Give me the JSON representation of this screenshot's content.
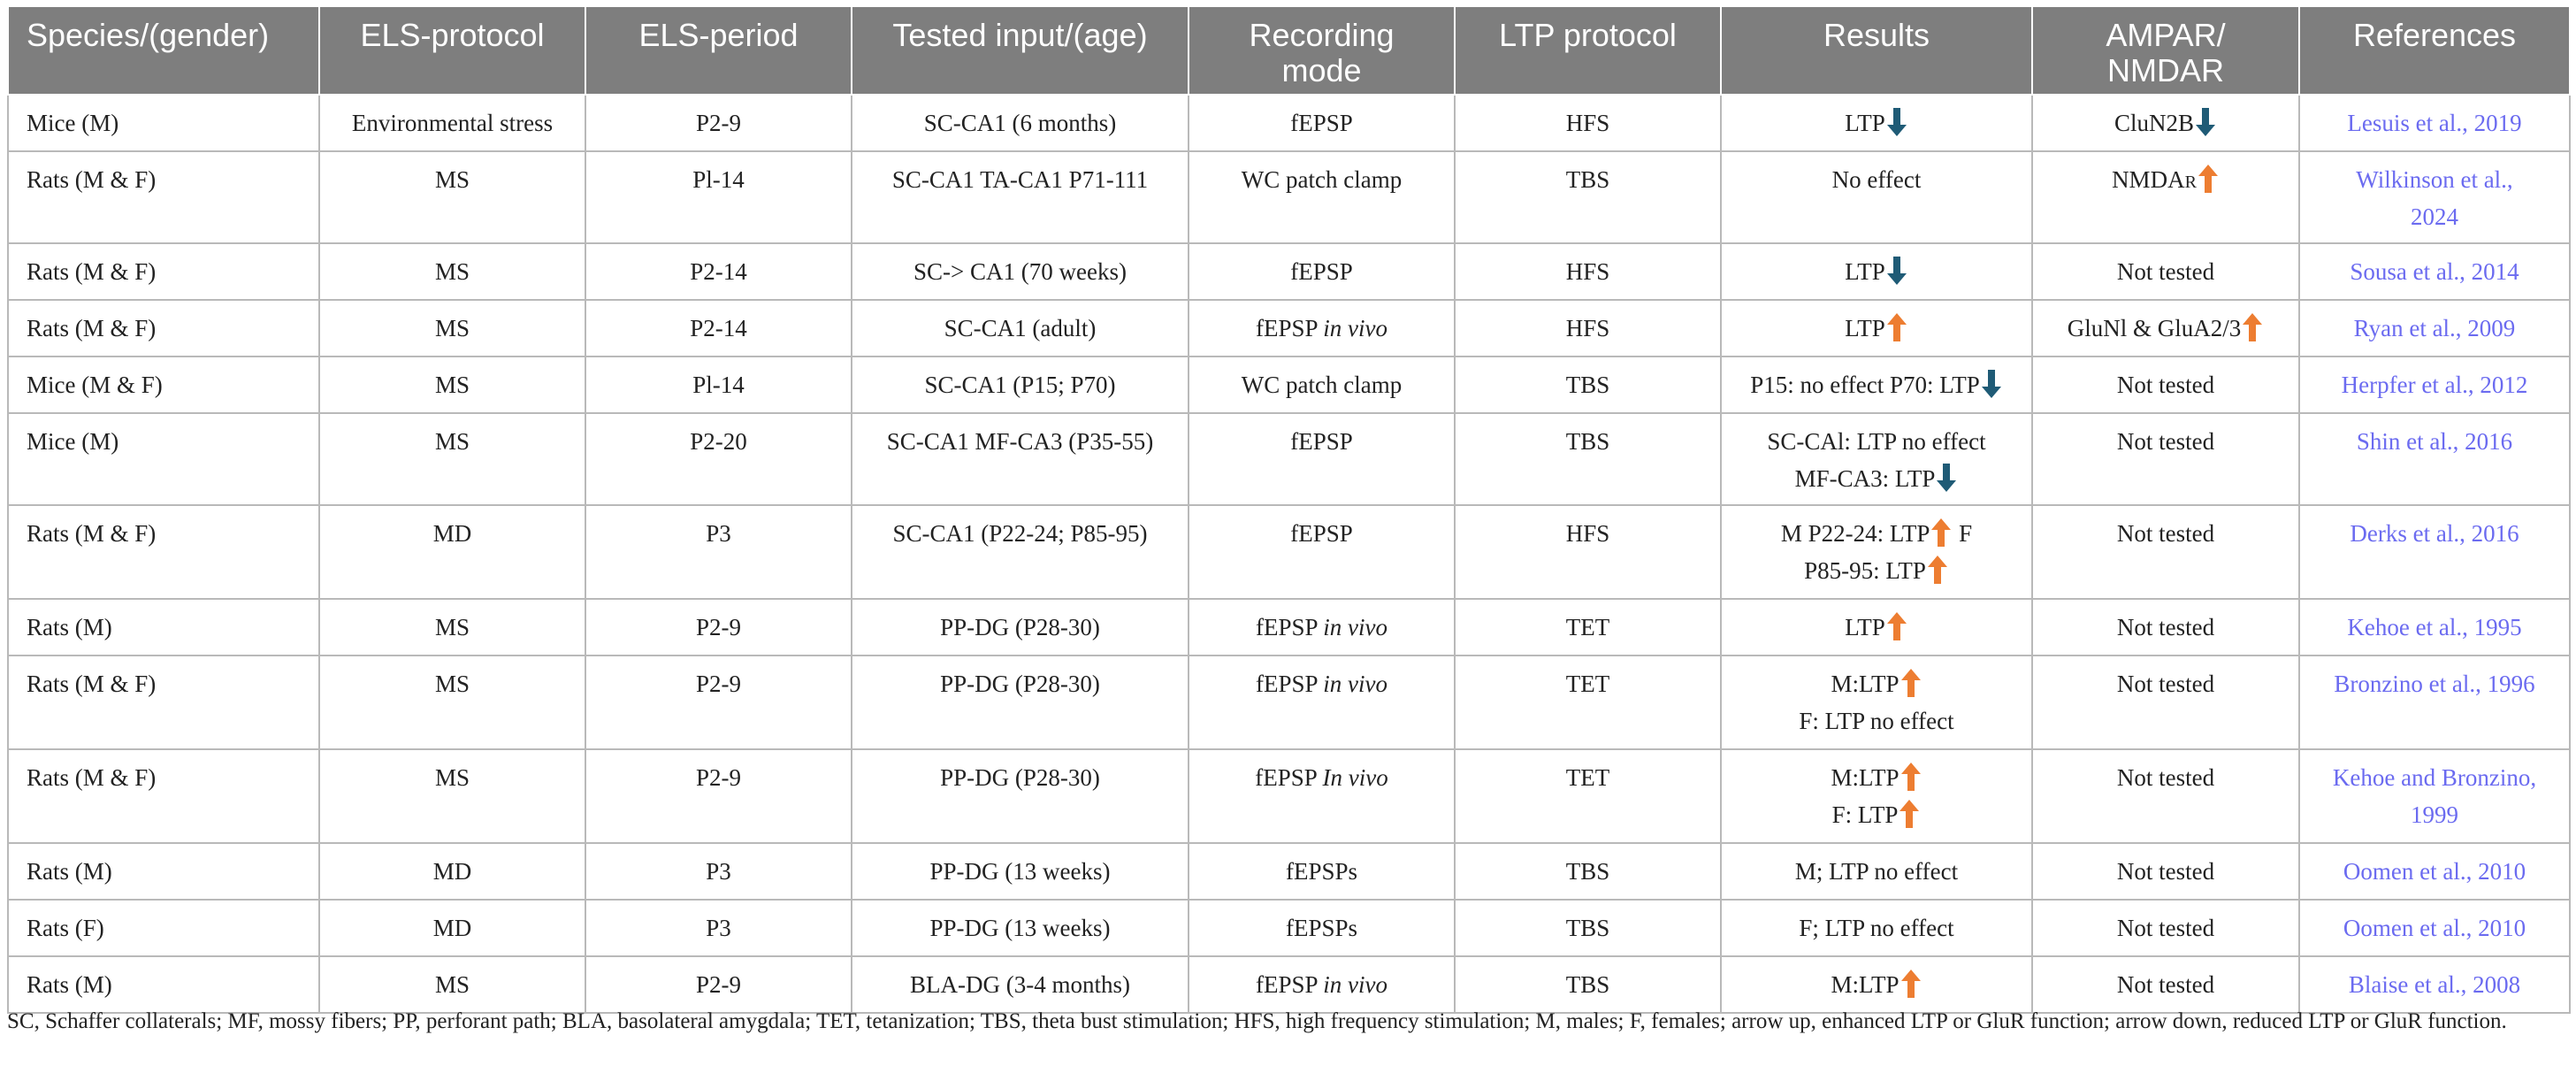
{
  "colors": {
    "header_bg": "#7e7e7e",
    "arrow_up": "#ed7d31",
    "arrow_down": "#1f5b76",
    "reference_link": "#6b6bf0"
  },
  "headers": [
    [
      "Species/(gender)"
    ],
    [
      "ELS-protocol"
    ],
    [
      "ELS-period"
    ],
    [
      "Tested input/(age)"
    ],
    [
      "Recording",
      "mode"
    ],
    [
      "LTP protocol"
    ],
    [
      "Results"
    ],
    [
      "AMPAR/",
      "NMDAR"
    ],
    [
      "References"
    ]
  ],
  "rows": [
    {
      "species": "Mice (M)",
      "els_protocol": "Environmental stress",
      "els_period": "P2-9",
      "input": [
        "SC-CA1 (6 months)"
      ],
      "recording": [
        {
          "t": "fEPSP"
        }
      ],
      "ltp_protocol": "HFS",
      "results": [
        [
          {
            "t": "LTP"
          },
          {
            "arrow": "down"
          }
        ]
      ],
      "receptor": [
        [
          {
            "t": "CluN2B"
          },
          {
            "arrow": "down"
          }
        ]
      ],
      "reference": [
        "Lesuis et al., 2019"
      ]
    },
    {
      "species": "Rats (M & F)",
      "els_protocol": "MS",
      "els_period": "Pl-14",
      "input": [
        "SC-CA1 TA-CA1 P71-111"
      ],
      "recording": [
        {
          "t": "WC patch clamp"
        }
      ],
      "ltp_protocol": "TBS",
      "results": [
        [
          {
            "t": "No effect"
          }
        ]
      ],
      "receptor": [
        [
          {
            "t": "NMDA"
          },
          {
            "t": "R",
            "sc": true
          },
          {
            "arrow": "up"
          }
        ]
      ],
      "reference": [
        "Wilkinson et al.,",
        "2024"
      ]
    },
    {
      "species": "Rats (M & F)",
      "els_protocol": "MS",
      "els_period": "P2-14",
      "input": [
        "SC-> CA1 (70 weeks)"
      ],
      "recording": [
        {
          "t": "fEPSP"
        }
      ],
      "ltp_protocol": "HFS",
      "results": [
        [
          {
            "t": "LTP"
          },
          {
            "arrow": "down"
          }
        ]
      ],
      "receptor": [
        [
          {
            "t": "Not tested"
          }
        ]
      ],
      "reference": [
        "Sousa et al., 2014"
      ]
    },
    {
      "species": "Rats (M & F)",
      "els_protocol": "MS",
      "els_period": "P2-14",
      "input": [
        "SC-CA1 (adult)"
      ],
      "recording": [
        {
          "t": "fEPSP "
        },
        {
          "t": "in vivo",
          "i": true
        }
      ],
      "ltp_protocol": "HFS",
      "results": [
        [
          {
            "t": "LTP"
          },
          {
            "arrow": "up"
          }
        ]
      ],
      "receptor": [
        [
          {
            "t": "GluNl & GluA2/3"
          },
          {
            "arrow": "up"
          }
        ]
      ],
      "reference": [
        "Ryan et al., 2009"
      ]
    },
    {
      "species": "Mice (M & F)",
      "els_protocol": "MS",
      "els_period": "Pl-14",
      "input": [
        "SC-CA1 (P15; P70)"
      ],
      "recording": [
        {
          "t": "WC patch clamp"
        }
      ],
      "ltp_protocol": "TBS",
      "results": [
        [
          {
            "t": "P15: no effect P70: LTP"
          },
          {
            "arrow": "down"
          }
        ]
      ],
      "receptor": [
        [
          {
            "t": "Not tested"
          }
        ]
      ],
      "reference": [
        "Herpfer et al., 2012"
      ]
    },
    {
      "species": "Mice (M)",
      "els_protocol": "MS",
      "els_period": "P2-20",
      "input": [
        "SC-CA1 MF-CA3 (P35-55)"
      ],
      "recording": [
        {
          "t": "fEPSP"
        }
      ],
      "ltp_protocol": "TBS",
      "results": [
        [
          {
            "t": "SC-CAl: LTP no effect"
          }
        ],
        [
          {
            "t": "MF-CA3: LTP"
          },
          {
            "arrow": "down"
          }
        ]
      ],
      "receptor": [
        [
          {
            "t": "Not tested"
          }
        ]
      ],
      "reference": [
        "Shin et al., 2016"
      ]
    },
    {
      "species": "Rats (M & F)",
      "els_protocol": "MD",
      "els_period": "P3",
      "input": [
        "SC-CA1 (P22-24; P85-95)"
      ],
      "recording": [
        {
          "t": "fEPSP"
        }
      ],
      "ltp_protocol": "HFS",
      "results": [
        [
          {
            "t": "M P22-24: LTP"
          },
          {
            "arrow": "up"
          },
          {
            "t": " F"
          }
        ],
        [
          {
            "t": "P85-95: LTP"
          },
          {
            "arrow": "up"
          }
        ]
      ],
      "receptor": [
        [
          {
            "t": "Not tested"
          }
        ]
      ],
      "reference": [
        "Derks et al., 2016"
      ]
    },
    {
      "species": "Rats (M)",
      "els_protocol": "MS",
      "els_period": "P2-9",
      "input": [
        "PP-DG (P28-30)"
      ],
      "recording": [
        {
          "t": "fEPSP "
        },
        {
          "t": "in vivo",
          "i": true
        }
      ],
      "ltp_protocol": "TET",
      "results": [
        [
          {
            "t": "LTP"
          },
          {
            "arrow": "up"
          }
        ]
      ],
      "receptor": [
        [
          {
            "t": "Not tested"
          }
        ]
      ],
      "reference": [
        "Kehoe et al., 1995"
      ]
    },
    {
      "species": "Rats (M & F)",
      "els_protocol": "MS",
      "els_period": "P2-9",
      "input": [
        "PP-DG (P28-30)"
      ],
      "recording": [
        {
          "t": "fEPSP "
        },
        {
          "t": "in vivo",
          "i": true
        }
      ],
      "ltp_protocol": "TET",
      "results": [
        [
          {
            "t": "M:LTP"
          },
          {
            "arrow": "up"
          }
        ],
        [
          {
            "t": "F: LTP no effect"
          }
        ]
      ],
      "receptor": [
        [
          {
            "t": "Not tested"
          }
        ]
      ],
      "reference": [
        "Bronzino et al., 1996"
      ]
    },
    {
      "species": "Rats (M & F)",
      "els_protocol": "MS",
      "els_period": "P2-9",
      "input": [
        "PP-DG (P28-30)"
      ],
      "recording": [
        {
          "t": "fEPSP "
        },
        {
          "t": "In vivo",
          "i": true
        }
      ],
      "ltp_protocol": "TET",
      "results": [
        [
          {
            "t": "M:LTP"
          },
          {
            "arrow": "up"
          }
        ],
        [
          {
            "t": "F: LTP"
          },
          {
            "arrow": "up"
          }
        ]
      ],
      "receptor": [
        [
          {
            "t": "Not tested"
          }
        ]
      ],
      "reference": [
        "Kehoe and Bronzino,",
        "1999"
      ]
    },
    {
      "species": "Rats (M)",
      "els_protocol": "MD",
      "els_period": "P3",
      "input": [
        "PP-DG (13 weeks)"
      ],
      "recording": [
        {
          "t": "fEPSPs"
        }
      ],
      "ltp_protocol": "TBS",
      "results": [
        [
          {
            "t": "M; LTP no effect"
          }
        ]
      ],
      "receptor": [
        [
          {
            "t": "Not tested"
          }
        ]
      ],
      "reference": [
        "Oomen et al., 2010"
      ]
    },
    {
      "species": "Rats (F)",
      "els_protocol": "MD",
      "els_period": "P3",
      "input": [
        "PP-DG (13 weeks)"
      ],
      "recording": [
        {
          "t": "fEPSPs"
        }
      ],
      "ltp_protocol": "TBS",
      "results": [
        [
          {
            "t": "F; LTP no effect"
          }
        ]
      ],
      "receptor": [
        [
          {
            "t": "Not tested"
          }
        ]
      ],
      "reference": [
        "Oomen et al., 2010"
      ]
    },
    {
      "species": "Rats (M)",
      "els_protocol": "MS",
      "els_period": "P2-9",
      "input": [
        "BLA-DG (3-4 months)"
      ],
      "recording": [
        {
          "t": "fEPSP "
        },
        {
          "t": "in vivo",
          "i": true
        }
      ],
      "ltp_protocol": "TBS",
      "results": [
        [
          {
            "t": "M:LTP"
          },
          {
            "arrow": "up"
          }
        ]
      ],
      "receptor": [
        [
          {
            "t": "Not tested"
          }
        ]
      ],
      "reference": [
        "Blaise et al., 2008"
      ]
    }
  ],
  "footnote": "SC, Schaffer collaterals; MF, mossy fibers; PP, perforant path; BLA, basolateral amygdala; TET, tetanization; TBS, theta bust stimulation; HFS, high frequency stimulation; M, males; F, females; arrow up, enhanced LTP or GluR function; arrow down, reduced LTP or GluR function."
}
